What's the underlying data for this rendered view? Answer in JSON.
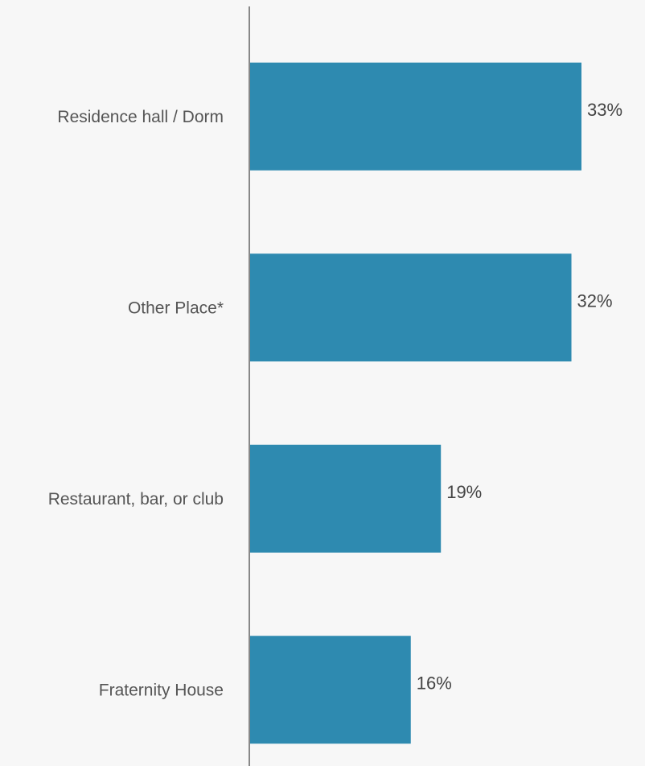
{
  "chart_data": {
    "type": "bar",
    "orientation": "horizontal",
    "title": "",
    "xlabel": "",
    "ylabel": "",
    "categories": [
      "Residence hall / Dorm",
      "Other Place*",
      "Restaurant, bar, or club",
      "Fraternity House"
    ],
    "values": [
      33,
      32,
      19,
      16
    ],
    "value_labels": [
      "33%",
      "32%",
      "19%",
      "16%"
    ],
    "unit": "%",
    "xlim": [
      0,
      40
    ],
    "grid": false,
    "legend": "none",
    "bar_color": "#2e8ab0",
    "axis_color": "#888888"
  }
}
